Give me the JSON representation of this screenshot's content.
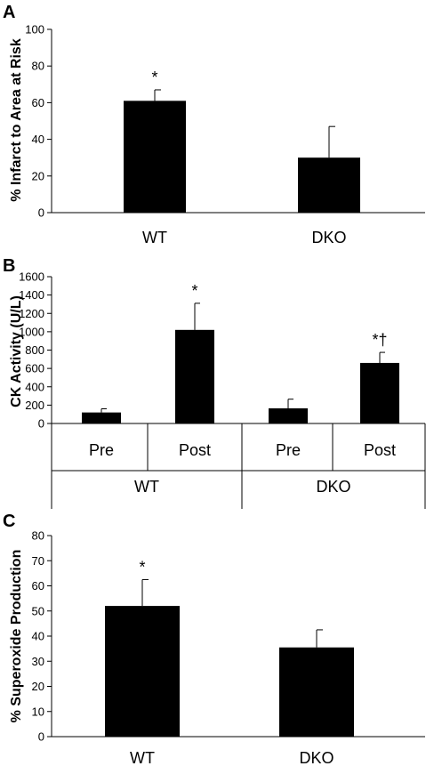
{
  "chart_data": [
    {
      "panel": "A",
      "type": "bar",
      "categories": [
        "WT",
        "DKO"
      ],
      "values": [
        61,
        30
      ],
      "errors": [
        6,
        17
      ],
      "annotations": [
        "*",
        ""
      ],
      "ylabel": "% Infarct to Area at Risk",
      "ylim": [
        0,
        100
      ],
      "yticks": [
        0,
        20,
        40,
        60,
        80,
        100
      ],
      "grid": false,
      "bar_color": "#000000"
    },
    {
      "panel": "B",
      "type": "bar",
      "categories": [
        "Pre",
        "Post",
        "Pre",
        "Post"
      ],
      "groups": [
        "WT",
        "DKO"
      ],
      "values": [
        120,
        1020,
        165,
        660
      ],
      "errors": [
        40,
        290,
        100,
        115
      ],
      "annotations": [
        "",
        "*",
        "",
        "*†"
      ],
      "ylabel": "CK Activity (U/L)",
      "ylim": [
        0,
        1600
      ],
      "yticks": [
        0,
        200,
        400,
        600,
        800,
        1000,
        1200,
        1400,
        1600
      ],
      "grid": false,
      "bar_color": "#000000"
    },
    {
      "panel": "C",
      "type": "bar",
      "categories": [
        "WT",
        "DKO"
      ],
      "values": [
        52,
        35.5
      ],
      "errors": [
        10.5,
        7
      ],
      "annotations": [
        "*",
        ""
      ],
      "ylabel": "% Superoxide Production",
      "ylim": [
        0,
        80
      ],
      "yticks": [
        0,
        10,
        20,
        30,
        40,
        50,
        60,
        70,
        80
      ],
      "grid": false,
      "bar_color": "#000000"
    }
  ]
}
